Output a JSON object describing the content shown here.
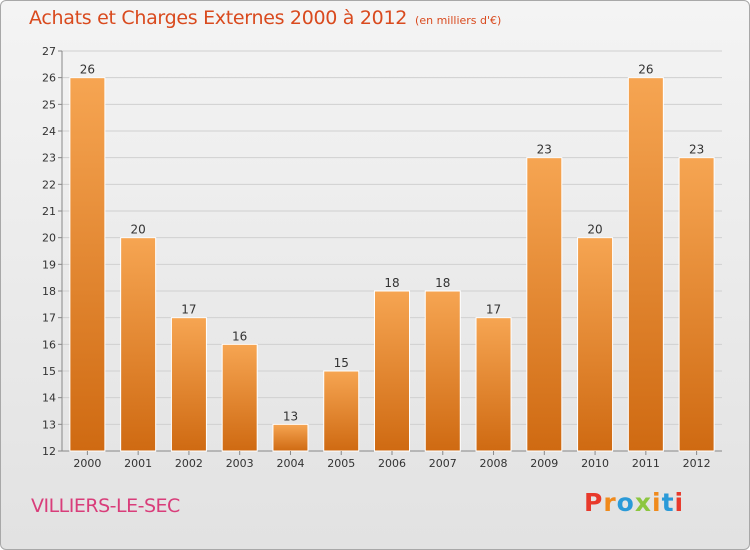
{
  "header": {
    "title": "Achats et Charges Externes 2000 à 2012",
    "subtitle": "(en milliers d'€)"
  },
  "footer": {
    "commune": "VILLIERS-LE-SEC",
    "logo_text": "Proxiti"
  },
  "colors": {
    "bar_top": "#f6a552",
    "bar_bottom": "#cf6a12",
    "title": "#d94a1e",
    "commune": "#d93d7a",
    "logo_letters": [
      "#e8392b",
      "#f08a1c",
      "#2a9ad8",
      "#8cc63f",
      "#f08a1c",
      "#2a9ad8",
      "#e8392b"
    ]
  },
  "chart_data": {
    "type": "bar",
    "categories": [
      "2000",
      "2001",
      "2002",
      "2003",
      "2004",
      "2005",
      "2006",
      "2007",
      "2008",
      "2009",
      "2010",
      "2011",
      "2012"
    ],
    "values": [
      26,
      20,
      17,
      16,
      13,
      15,
      18,
      18,
      17,
      23,
      20,
      26,
      23
    ],
    "yticks": [
      12,
      13,
      14,
      15,
      16,
      17,
      18,
      19,
      20,
      21,
      22,
      23,
      24,
      25,
      26,
      27
    ],
    "ylim": [
      12,
      27
    ],
    "grid": true,
    "data_labels": true
  }
}
